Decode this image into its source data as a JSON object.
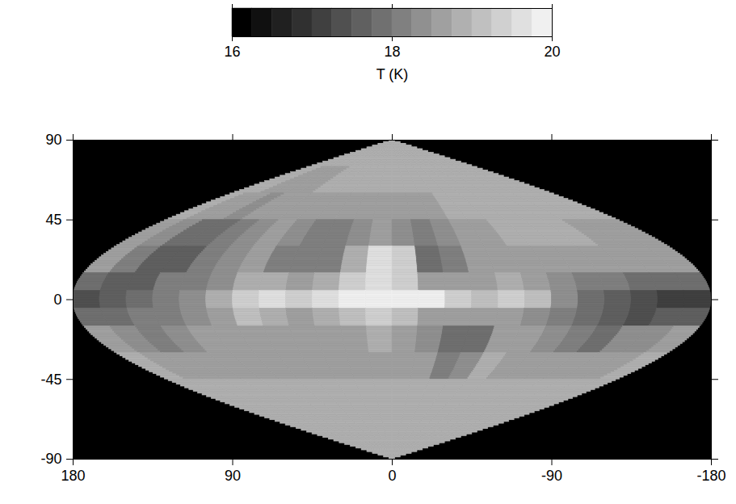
{
  "chart_data": {
    "type": "heatmap",
    "xlim": [
      180,
      -180
    ],
    "ylim": [
      -90,
      90
    ],
    "xticks": [
      180,
      90,
      0,
      -90,
      -180
    ],
    "yticks": [
      -90,
      -45,
      0,
      45,
      90
    ],
    "lon_edges": [
      180,
      165,
      150,
      135,
      120,
      105,
      90,
      75,
      60,
      45,
      30,
      15,
      0,
      -15,
      -30,
      -45,
      -60,
      -75,
      -90,
      -105,
      -120,
      -135,
      -150,
      -165,
      -180
    ],
    "lat_edges": [
      90,
      75,
      60,
      45,
      30,
      15,
      5,
      -5,
      -15,
      -30,
      -45,
      -60,
      -75,
      -90
    ],
    "values": [
      [
        18.8,
        18.8,
        18.8,
        18.8,
        18.8,
        18.8,
        18.8,
        18.8,
        18.8,
        18.8,
        18.8,
        18.8,
        18.8,
        18.8,
        18.8,
        18.8,
        18.8,
        18.8,
        18.8,
        18.8,
        18.8,
        18.8,
        18.8,
        18.8
      ],
      [
        18.8,
        18.8,
        18.6,
        18.6,
        18.6,
        18.6,
        18.8,
        18.8,
        18.8,
        18.8,
        18.8,
        18.8,
        18.8,
        18.8,
        18.8,
        18.8,
        18.8,
        18.8,
        18.8,
        18.8,
        18.8,
        18.8,
        18.8,
        18.8
      ],
      [
        18.8,
        18.7,
        18.5,
        18.4,
        18.5,
        18.6,
        18.7,
        18.6,
        18.5,
        18.5,
        18.6,
        18.7,
        18.7,
        18.6,
        18.7,
        18.8,
        18.8,
        18.8,
        18.8,
        18.8,
        18.8,
        18.8,
        18.8,
        18.8
      ],
      [
        18.7,
        18.4,
        17.9,
        17.8,
        18.1,
        18.4,
        18.6,
        18.3,
        18.0,
        18.1,
        18.4,
        18.6,
        18.3,
        18.0,
        18.3,
        18.6,
        18.7,
        18.8,
        18.8,
        18.8,
        18.8,
        18.7,
        18.7,
        18.7
      ],
      [
        18.5,
        18.0,
        17.6,
        17.7,
        18.0,
        18.3,
        18.5,
        18.2,
        18.0,
        18.2,
        18.8,
        19.6,
        19.4,
        17.8,
        18.0,
        18.5,
        18.6,
        18.7,
        18.7,
        18.6,
        18.5,
        18.5,
        18.5,
        18.5
      ],
      [
        17.8,
        17.6,
        17.7,
        18.0,
        18.2,
        18.4,
        18.9,
        18.8,
        18.7,
        18.9,
        19.3,
        19.5,
        19.3,
        18.7,
        18.5,
        18.6,
        18.8,
        18.6,
        18.4,
        18.2,
        18.0,
        17.8,
        17.8,
        17.8
      ],
      [
        17.3,
        17.6,
        17.8,
        18.0,
        18.3,
        18.8,
        19.4,
        19.5,
        19.3,
        19.6,
        19.8,
        20.0,
        20.0,
        19.8,
        19.3,
        19.1,
        19.4,
        19.2,
        18.3,
        17.9,
        17.6,
        17.3,
        17.2,
        17.2
      ],
      [
        17.8,
        17.9,
        18.0,
        18.2,
        18.4,
        18.6,
        19.0,
        18.9,
        18.6,
        18.8,
        19.1,
        19.3,
        19.2,
        18.7,
        18.5,
        18.5,
        18.7,
        18.4,
        18.2,
        17.9,
        17.6,
        17.3,
        17.6,
        17.6
      ],
      [
        18.6,
        18.3,
        18.2,
        18.4,
        18.5,
        18.5,
        18.6,
        18.6,
        18.5,
        18.6,
        18.7,
        18.8,
        18.6,
        18.4,
        17.8,
        17.9,
        18.6,
        18.5,
        18.4,
        18.2,
        17.9,
        18.4,
        18.3,
        18.5
      ],
      [
        18.8,
        18.7,
        18.6,
        18.7,
        18.7,
        18.7,
        18.7,
        18.7,
        18.6,
        18.6,
        18.7,
        18.7,
        18.6,
        18.5,
        18.2,
        18.3,
        18.8,
        18.6,
        18.5,
        18.5,
        18.6,
        18.6,
        18.7,
        18.8
      ],
      [
        18.8,
        18.8,
        18.8,
        18.8,
        18.8,
        18.8,
        18.8,
        18.8,
        18.8,
        18.8,
        18.8,
        18.8,
        18.8,
        18.8,
        18.8,
        18.8,
        18.8,
        18.8,
        18.8,
        18.8,
        18.8,
        18.8,
        18.8,
        18.8
      ],
      [
        18.8,
        18.8,
        18.8,
        18.8,
        18.8,
        18.8,
        18.8,
        18.8,
        18.8,
        18.8,
        18.8,
        18.8,
        18.8,
        18.8,
        18.8,
        18.8,
        18.8,
        18.8,
        18.8,
        18.8,
        18.8,
        18.8,
        18.8,
        18.8
      ],
      [
        18.8,
        18.8,
        18.8,
        18.8,
        18.8,
        18.8,
        18.8,
        18.8,
        18.8,
        18.8,
        18.8,
        18.8,
        18.8,
        18.8,
        18.8,
        18.8,
        18.8,
        18.8,
        18.8,
        18.8,
        18.8,
        18.8,
        18.8,
        18.8
      ]
    ],
    "colorbar": {
      "range": [
        16,
        20
      ],
      "ticks": [
        16,
        18,
        20
      ],
      "label": "T (K)"
    }
  }
}
